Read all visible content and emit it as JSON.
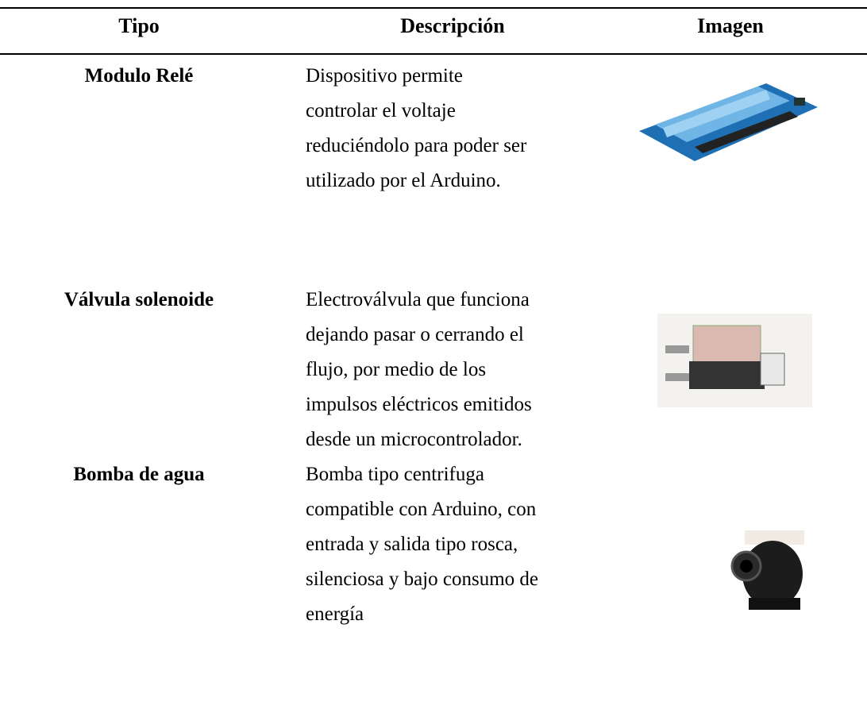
{
  "table": {
    "header": [
      "Tipo",
      "Descripción",
      "Imagen"
    ],
    "rows": [
      {
        "tipo": "Modulo Relé",
        "descripcion": [
          "Dispositivo permite",
          "controlar el voltaje",
          "reduciéndolo para poder ser",
          "utilizado por el Arduino."
        ]
      },
      {
        "tipo": "Válvula solenoide",
        "descripcion": [
          "Electroválvula que funciona",
          "dejando pasar o cerrando el",
          "flujo, por medio de los",
          "impulsos eléctricos emitidos",
          "desde un microcontrolador."
        ]
      },
      {
        "tipo": "Bomba de agua",
        "descripcion": [
          "Bomba tipo centrifuga",
          "compatible con Arduino, con",
          "entrada y salida tipo rosca,",
          "silenciosa y bajo consumo de",
          "energía"
        ]
      }
    ]
  }
}
